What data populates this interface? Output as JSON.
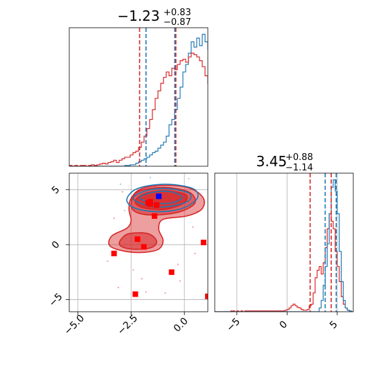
{
  "chart_data": {
    "type": "corner",
    "colors": {
      "blue": "#1f77b4",
      "red": "#d62728",
      "grid": "#b0b0b0",
      "marker_blue": "#0000ff",
      "marker_red": "#ff0000"
    },
    "panels": {
      "hist_x": {
        "type": "histogram",
        "title": {
          "main": "−1.23",
          "sup": "+0.83",
          "sub": "−0.87"
        },
        "xlim": [
          -5.4,
          1.1
        ],
        "bins_start": -5.4,
        "bin_width": 0.13,
        "series": [
          {
            "color": "blue",
            "counts": [
              0,
              0,
              0,
              0,
              0,
              0,
              0,
              0,
              0,
              0,
              0,
              0,
              0,
              0,
              0,
              0,
              0,
              0,
              0,
              0,
              1,
              1,
              2,
              2,
              4,
              6,
              8,
              10,
              12,
              15,
              18,
              20,
              24,
              28,
              32,
              40,
              55,
              62,
              75,
              90,
              105,
              125,
              135,
              150,
              165,
              158,
              170,
              160,
              175,
              165,
              155,
              140,
              125,
              110,
              95,
              75,
              60,
              45,
              35,
              28,
              25,
              22,
              18,
              15,
              10,
              8,
              5,
              3,
              2,
              1
            ]
          },
          {
            "color": "red",
            "counts": [
              1,
              0,
              1,
              0,
              1,
              1,
              0,
              1,
              2,
              1,
              2,
              3,
              4,
              3,
              5,
              6,
              8,
              5,
              8,
              10,
              12,
              12,
              15,
              18,
              20,
              25,
              32,
              40,
              50,
              62,
              75,
              90,
              100,
              110,
              118,
              125,
              120,
              130,
              128,
              135,
              140,
              142,
              138,
              145,
              150,
              148,
              145,
              140,
              132,
              120,
              110,
              95,
              82,
              70,
              58,
              48,
              40,
              35,
              30,
              25,
              20,
              14,
              10,
              6,
              4,
              3,
              2,
              1,
              1,
              0
            ]
          }
        ],
        "vlines": [
          {
            "color": "red",
            "x": -2.1
          },
          {
            "color": "blue",
            "x": -1.8
          },
          {
            "color": "blue",
            "x": -0.45
          },
          {
            "color": "red",
            "x": -0.4
          }
        ]
      },
      "hist_y": {
        "type": "histogram",
        "title": {
          "main": "3.45",
          "sup": "+0.88",
          "sub": "−1.14"
        },
        "xlim": [
          -7.2,
          6.6
        ],
        "x_ticks": [
          -5,
          0,
          5
        ],
        "bins_start": -7.2,
        "bin_width": 0.2,
        "series": [
          {
            "color": "red",
            "counts": [
              0,
              0,
              0,
              0,
              0,
              0,
              0,
              0,
              1,
              1,
              0,
              1,
              0,
              1,
              0,
              1,
              1,
              1,
              1,
              1,
              1,
              1,
              1,
              1,
              1,
              1,
              1,
              1,
              1,
              1,
              1,
              1,
              1,
              1,
              1,
              2,
              3,
              5,
              8,
              10,
              8,
              6,
              5,
              3,
              2,
              2,
              3,
              8,
              10,
              25,
              45,
              55,
              60,
              50,
              65,
              85,
              110,
              130,
              120,
              110,
              80,
              60,
              40,
              20,
              10,
              5,
              2,
              1,
              0,
              0
            ]
          },
          {
            "color": "blue",
            "counts": [
              0,
              0,
              0,
              0,
              0,
              0,
              0,
              0,
              0,
              0,
              0,
              0,
              0,
              0,
              0,
              0,
              0,
              0,
              0,
              0,
              0,
              0,
              0,
              0,
              0,
              0,
              0,
              0,
              0,
              0,
              0,
              0,
              0,
              0,
              0,
              0,
              0,
              0,
              0,
              0,
              0,
              0,
              0,
              0,
              0,
              0,
              0,
              0,
              0,
              0,
              0,
              0,
              5,
              15,
              35,
              60,
              90,
              130,
              165,
              175,
              160,
              130,
              80,
              40,
              15,
              5,
              2,
              1,
              0,
              0
            ]
          }
        ],
        "vlines": [
          {
            "color": "red",
            "x": 2.3
          },
          {
            "color": "blue",
            "x": 3.8
          },
          {
            "color": "red",
            "x": 4.4
          },
          {
            "color": "blue",
            "x": 4.9
          }
        ]
      },
      "scatter": {
        "type": "scatter",
        "xlim": [
          -5.4,
          1.1
        ],
        "ylim": [
          -6.1,
          6.5
        ],
        "x_ticks": [
          -5.0,
          -2.5,
          0.0
        ],
        "y_ticks": [
          -5,
          0,
          5
        ],
        "red_markers": [
          [
            -1.6,
            3.9
          ],
          [
            -1.6,
            3.7
          ],
          [
            -1.7,
            3.8
          ],
          [
            -1.3,
            3.6
          ],
          [
            -1.4,
            2.6
          ],
          [
            -2.2,
            0.5
          ],
          [
            -1.9,
            -0.2
          ],
          [
            -3.3,
            -0.8
          ],
          [
            -0.6,
            -2.5
          ],
          [
            -2.3,
            -4.5
          ],
          [
            0.9,
            0.2
          ],
          [
            1.1,
            -4.7
          ]
        ],
        "blue_marker": [
          -1.2,
          4.4
        ],
        "red_contours": [
          {
            "level": 1,
            "points": [
              [
                -3.4,
                0.8
              ],
              [
                -2.7,
                1.5
              ],
              [
                -2.5,
                2.2
              ],
              [
                -2.6,
                3.2
              ],
              [
                -2.5,
                4.2
              ],
              [
                -2.0,
                5.1
              ],
              [
                -0.8,
                5.4
              ],
              [
                0.3,
                5.1
              ],
              [
                0.9,
                4.2
              ],
              [
                0.8,
                3.2
              ],
              [
                0.1,
                2.6
              ],
              [
                -1.0,
                2.3
              ],
              [
                -1.2,
                1.4
              ],
              [
                -1.0,
                0.4
              ],
              [
                -1.2,
                -0.4
              ],
              [
                -1.9,
                -0.7
              ],
              [
                -2.8,
                -0.6
              ],
              [
                -3.5,
                -0.1
              ]
            ]
          },
          {
            "level": 2,
            "points": [
              [
                -2.5,
                3.6
              ],
              [
                -2.2,
                4.8
              ],
              [
                -1.0,
                5.2
              ],
              [
                0.2,
                4.8
              ],
              [
                0.5,
                3.8
              ],
              [
                -0.2,
                3.0
              ],
              [
                -1.3,
                2.7
              ],
              [
                -2.2,
                2.9
              ]
            ]
          },
          {
            "level": 2,
            "points": [
              [
                -3.0,
                0.4
              ],
              [
                -2.6,
                1.0
              ],
              [
                -1.7,
                1.0
              ],
              [
                -1.3,
                0.3
              ],
              [
                -1.6,
                -0.3
              ],
              [
                -2.5,
                -0.4
              ],
              [
                -3.0,
                -0.1
              ]
            ]
          },
          {
            "level": 3,
            "points": [
              [
                -2.3,
                4.0
              ],
              [
                -1.8,
                4.7
              ],
              [
                -0.8,
                4.9
              ],
              [
                0.1,
                4.5
              ],
              [
                -0.1,
                3.7
              ],
              [
                -1.0,
                3.2
              ],
              [
                -2.0,
                3.4
              ]
            ]
          }
        ],
        "blue_contours": [
          {
            "points": [
              [
                -2.7,
                4.1
              ],
              [
                -2.2,
                5.1
              ],
              [
                -0.9,
                5.5
              ],
              [
                0.4,
                5.1
              ],
              [
                0.6,
                4.2
              ],
              [
                -0.1,
                3.3
              ],
              [
                -1.2,
                3.0
              ],
              [
                -2.3,
                3.3
              ]
            ]
          },
          {
            "points": [
              [
                -2.4,
                4.2
              ],
              [
                -1.8,
                4.9
              ],
              [
                -0.8,
                5.1
              ],
              [
                0.2,
                4.7
              ],
              [
                0.2,
                4.0
              ],
              [
                -0.6,
                3.5
              ],
              [
                -1.6,
                3.5
              ]
            ]
          },
          {
            "points": [
              [
                -2.1,
                4.3
              ],
              [
                -1.4,
                4.8
              ],
              [
                -0.6,
                4.8
              ],
              [
                -0.1,
                4.3
              ],
              [
                -0.6,
                3.8
              ],
              [
                -1.5,
                3.8
              ]
            ]
          }
        ],
        "red_bg_points": [
          [
            -1.8,
            -4.3
          ],
          [
            -0.9,
            -4.4
          ],
          [
            -2.4,
            -2.3
          ],
          [
            -3.6,
            -1.5
          ],
          [
            -0.3,
            -1.8
          ],
          [
            -3.3,
            2.4
          ],
          [
            -2.9,
            4.8
          ],
          [
            0.5,
            -0.8
          ],
          [
            -0.2,
            -3.3
          ],
          [
            -2.0,
            -3.1
          ],
          [
            -3.1,
            -3.9
          ],
          [
            0.4,
            1.6
          ]
        ],
        "blue_bg_points": [
          [
            -2.8,
            3.1
          ],
          [
            0.6,
            3.0
          ],
          [
            -1.6,
            6.1
          ],
          [
            0.2,
            6.0
          ],
          [
            -3.0,
            5.5
          ]
        ]
      }
    }
  }
}
